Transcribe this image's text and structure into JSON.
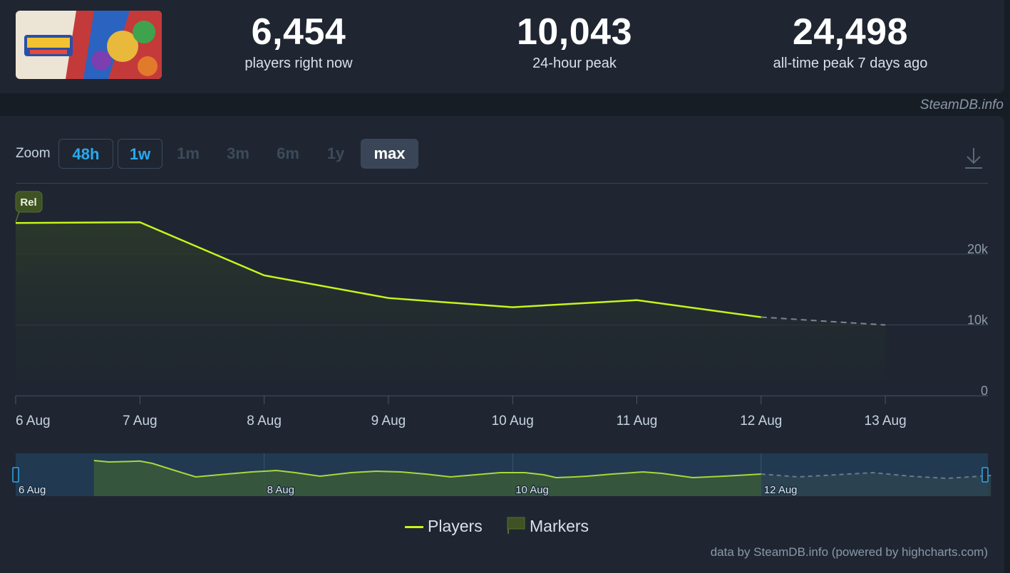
{
  "stats": [
    {
      "value": "6,454",
      "label": "players right now"
    },
    {
      "value": "10,043",
      "label": "24-hour peak"
    },
    {
      "value": "24,498",
      "label": "all-time peak 7 days ago"
    }
  ],
  "credit": "SteamDB.info",
  "zoom": {
    "label": "Zoom",
    "buttons": [
      {
        "label": "48h",
        "state": "enabled"
      },
      {
        "label": "1w",
        "state": "enabled"
      },
      {
        "label": "1m",
        "state": "disabled"
      },
      {
        "label": "3m",
        "state": "disabled"
      },
      {
        "label": "6m",
        "state": "disabled"
      },
      {
        "label": "1y",
        "state": "disabled"
      },
      {
        "label": "max",
        "state": "selected"
      }
    ]
  },
  "icons": {
    "download": "download-icon",
    "thumbnail": "game-thumbnail"
  },
  "legend": {
    "players": "Players",
    "markers": "Markers"
  },
  "footer": "data by SteamDB.info (powered by highcharts.com)",
  "colors": {
    "players": "#c6f51c",
    "marker": "#3e5224",
    "navigator_bg": "#213a52"
  },
  "chart_data": {
    "type": "line",
    "x_ticks": [
      "6 Aug",
      "7 Aug",
      "8 Aug",
      "9 Aug",
      "10 Aug",
      "11 Aug",
      "12 Aug",
      "13 Aug"
    ],
    "y_ticks": [
      "0",
      "10k",
      "20k"
    ],
    "ylim": [
      0,
      30000
    ],
    "marker": {
      "label": "Rel",
      "x": 0
    },
    "series": [
      {
        "name": "Players",
        "points": [
          [
            0,
            24400
          ],
          [
            1,
            24500
          ],
          [
            2,
            17000
          ],
          [
            3,
            13800
          ],
          [
            4,
            12500
          ],
          [
            5,
            13500
          ],
          [
            6,
            11100
          ]
        ],
        "projection": [
          [
            6,
            11100
          ],
          [
            7,
            10000
          ]
        ]
      }
    ],
    "navigator": {
      "x_ticks": [
        "6 Aug",
        "8 Aug",
        "10 Aug",
        "12 Aug"
      ],
      "values": [
        [
          0.63,
          25000
        ],
        [
          0.75,
          24000
        ],
        [
          0.9,
          24300
        ],
        [
          1.0,
          24600
        ],
        [
          1.1,
          23000
        ],
        [
          1.3,
          17500
        ],
        [
          1.45,
          13500
        ],
        [
          1.7,
          15500
        ],
        [
          1.9,
          17000
        ],
        [
          2.1,
          18000
        ],
        [
          2.25,
          16500
        ],
        [
          2.45,
          14000
        ],
        [
          2.7,
          16500
        ],
        [
          2.9,
          17500
        ],
        [
          3.1,
          17000
        ],
        [
          3.3,
          15500
        ],
        [
          3.5,
          13500
        ],
        [
          3.7,
          15000
        ],
        [
          3.9,
          16500
        ],
        [
          4.1,
          16500
        ],
        [
          4.25,
          15000
        ],
        [
          4.35,
          13000
        ],
        [
          4.5,
          13500
        ],
        [
          4.6,
          14000
        ],
        [
          4.8,
          15500
        ],
        [
          5.05,
          17000
        ],
        [
          5.2,
          16000
        ],
        [
          5.45,
          13000
        ],
        [
          5.7,
          14000
        ],
        [
          5.9,
          15000
        ],
        [
          6.0,
          15500
        ]
      ],
      "projection": [
        [
          6.0,
          15500
        ],
        [
          6.3,
          13500
        ],
        [
          6.6,
          15000
        ],
        [
          6.9,
          16500
        ],
        [
          7.2,
          14000
        ],
        [
          7.5,
          12500
        ],
        [
          7.85,
          14500
        ]
      ]
    }
  }
}
